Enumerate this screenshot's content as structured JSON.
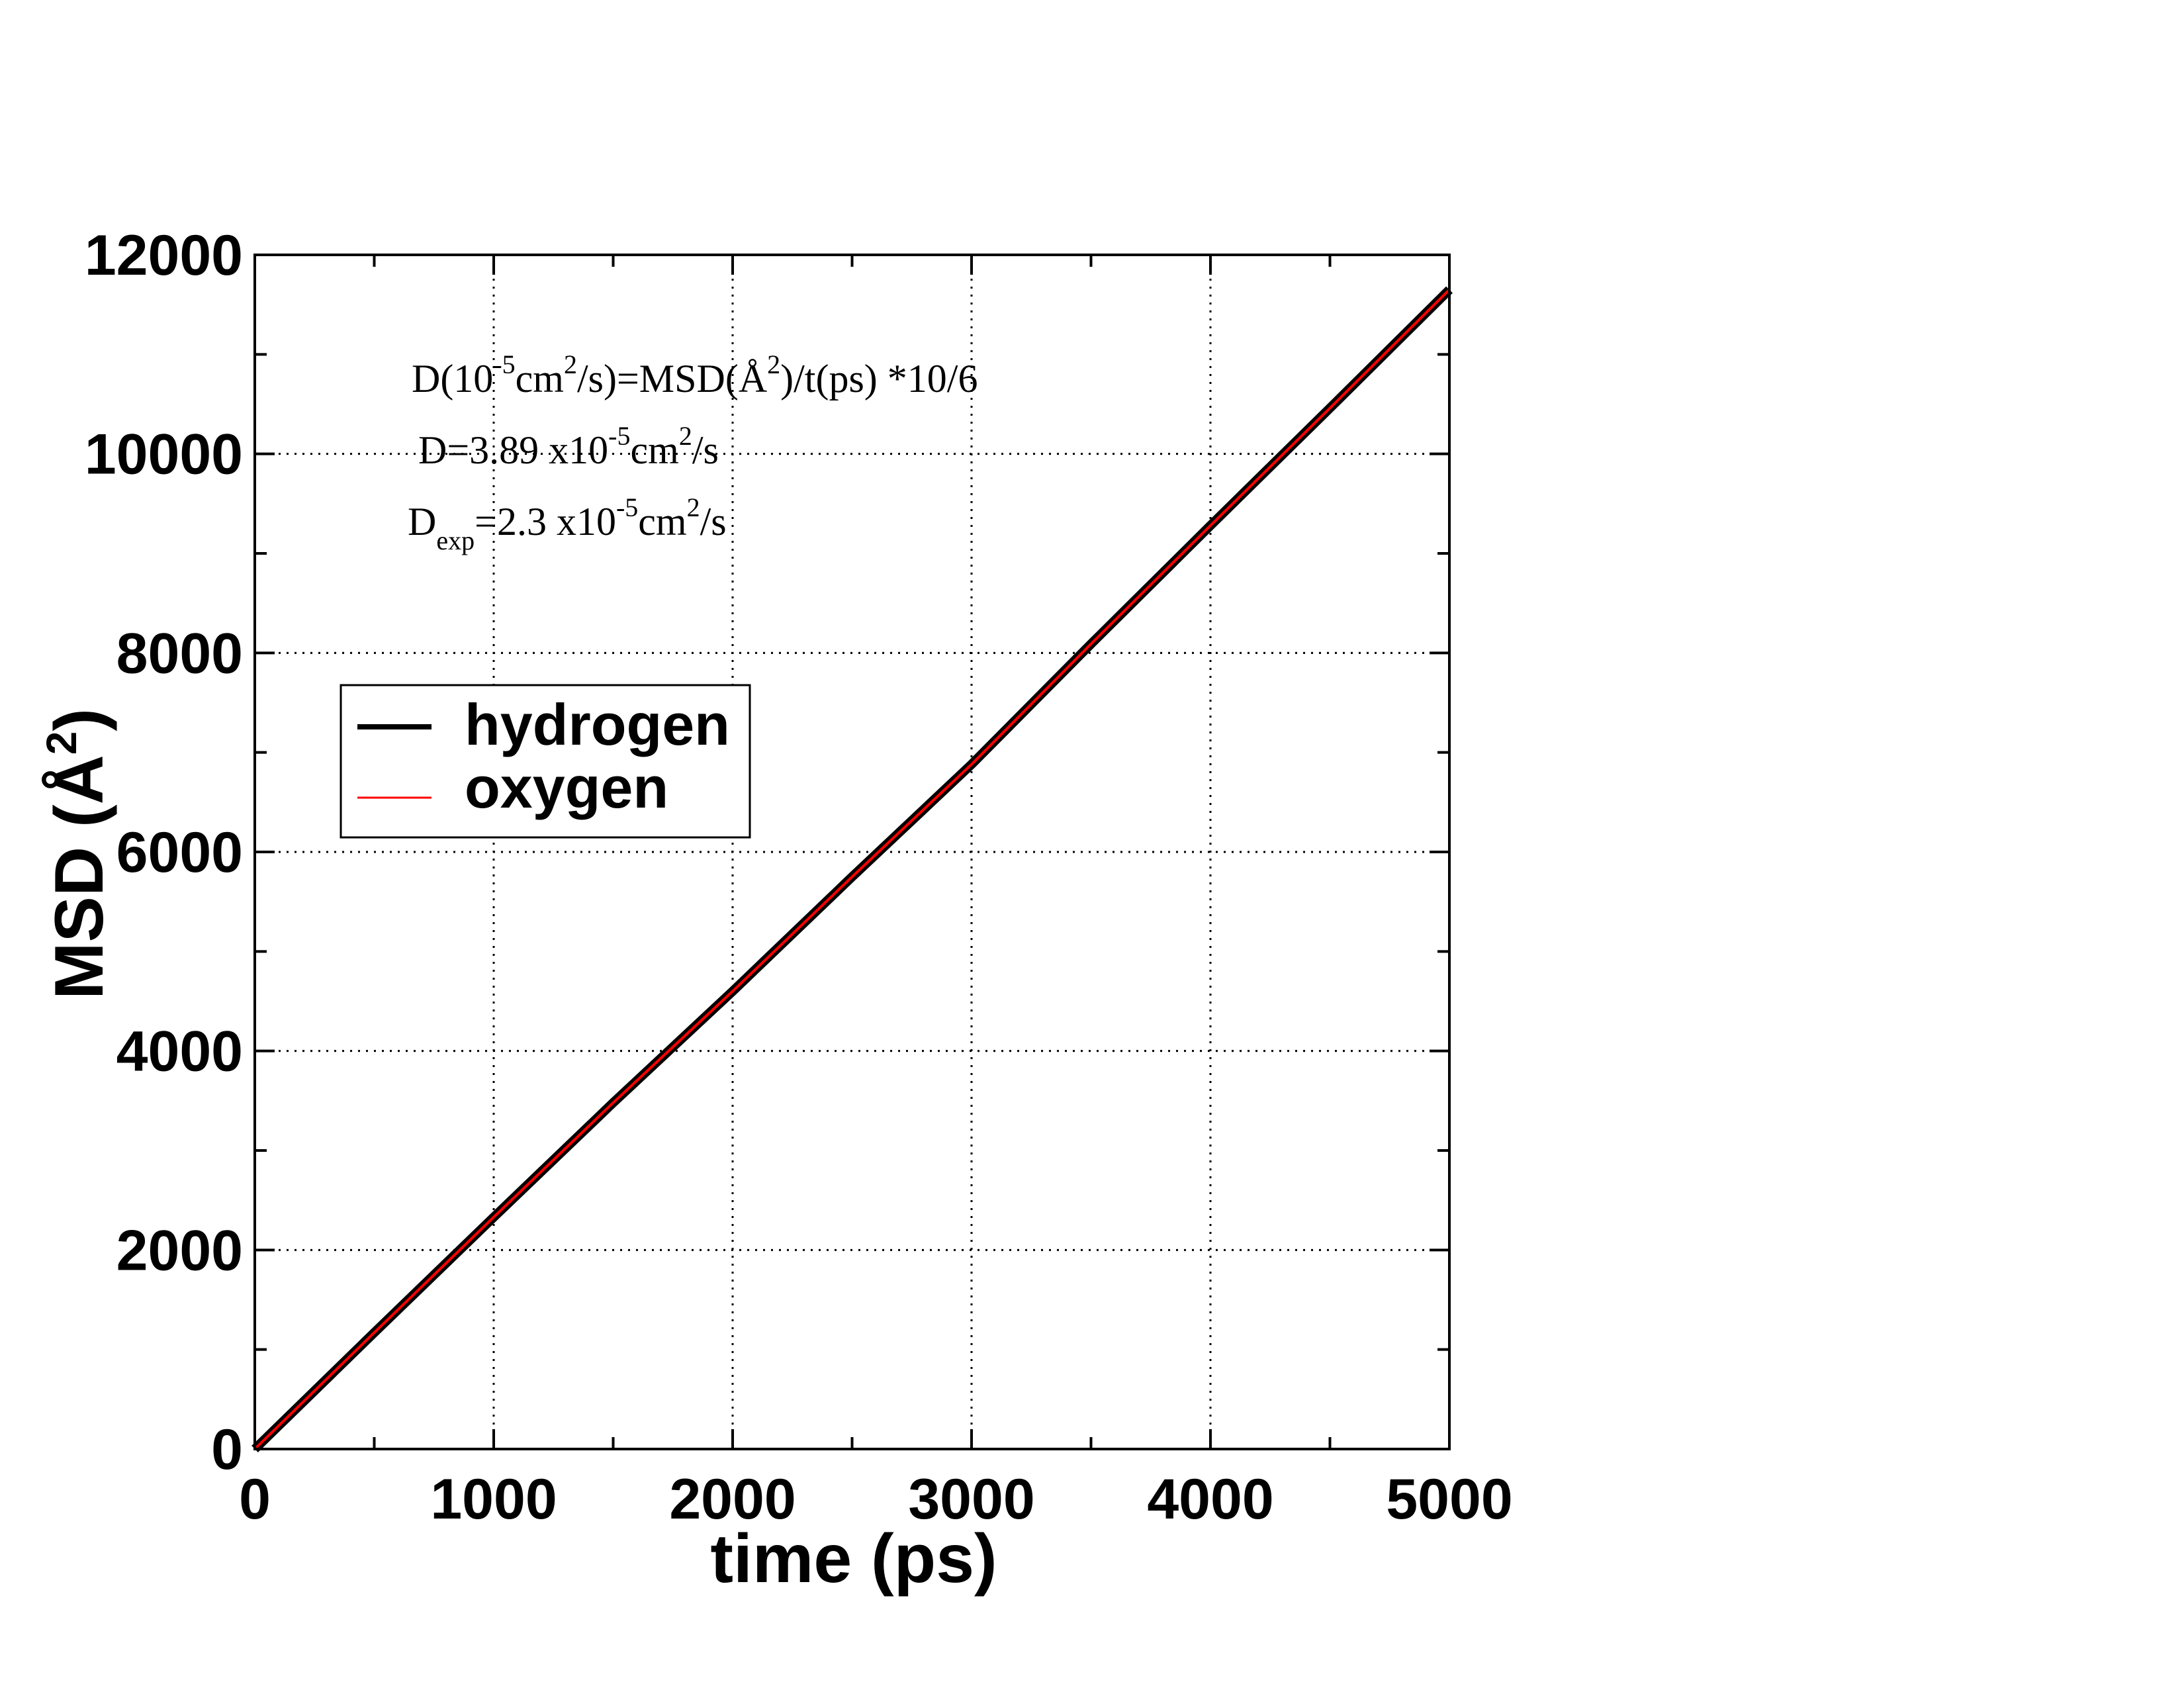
{
  "chart_data": {
    "type": "line",
    "title": "",
    "xlabel": "time (ps)",
    "ylabel_text": "MSD (Å",
    "ylabel_sup": "2",
    "ylabel_close": ")",
    "xlim": [
      0,
      5000
    ],
    "ylim": [
      0,
      12000
    ],
    "x_ticks": [
      0,
      1000,
      2000,
      3000,
      4000,
      5000
    ],
    "y_ticks": [
      0,
      2000,
      4000,
      6000,
      8000,
      10000,
      12000
    ],
    "x_tick_labels": [
      "0",
      "1000",
      "2000",
      "3000",
      "4000",
      "5000"
    ],
    "y_tick_labels": [
      "0",
      "2000",
      "4000",
      "6000",
      "8000",
      "10000",
      "12000"
    ],
    "grid": "dotted",
    "legend_position": "upper-left",
    "series": [
      {
        "name": "hydrogen",
        "color": "#000000",
        "x": [
          0,
          500,
          1000,
          1500,
          2000,
          2500,
          3000,
          3500,
          4000,
          4500,
          5000
        ],
        "y": [
          0,
          1170,
          2330,
          3480,
          4600,
          5750,
          6880,
          8090,
          9280,
          10460,
          11650
        ]
      },
      {
        "name": "oxygen",
        "color": "#ff0000",
        "x": [
          0,
          500,
          1000,
          1500,
          2000,
          2500,
          3000,
          3500,
          4000,
          4500,
          5000
        ],
        "y": [
          0,
          1170,
          2330,
          3480,
          4600,
          5750,
          6880,
          8090,
          9280,
          10460,
          11650
        ]
      }
    ],
    "annotations": {
      "line1": {
        "p1": "D(10",
        "s1": "-5",
        "p2": "cm",
        "s2": "2",
        "p3": "/s)=MSD(Å",
        "s3": "2",
        "p4": ")/t(ps) *10/6"
      },
      "line2": {
        "p1": "D=3.89 x10",
        "s1": "-5",
        "p2": "cm",
        "s2": "2",
        "p3": "/s"
      },
      "line3": {
        "p1": "D",
        "sub": "exp",
        "p2": "=2.3 x10",
        "s1": "-5",
        "p3": "cm",
        "s2": "2",
        "p4": "/s"
      }
    }
  }
}
